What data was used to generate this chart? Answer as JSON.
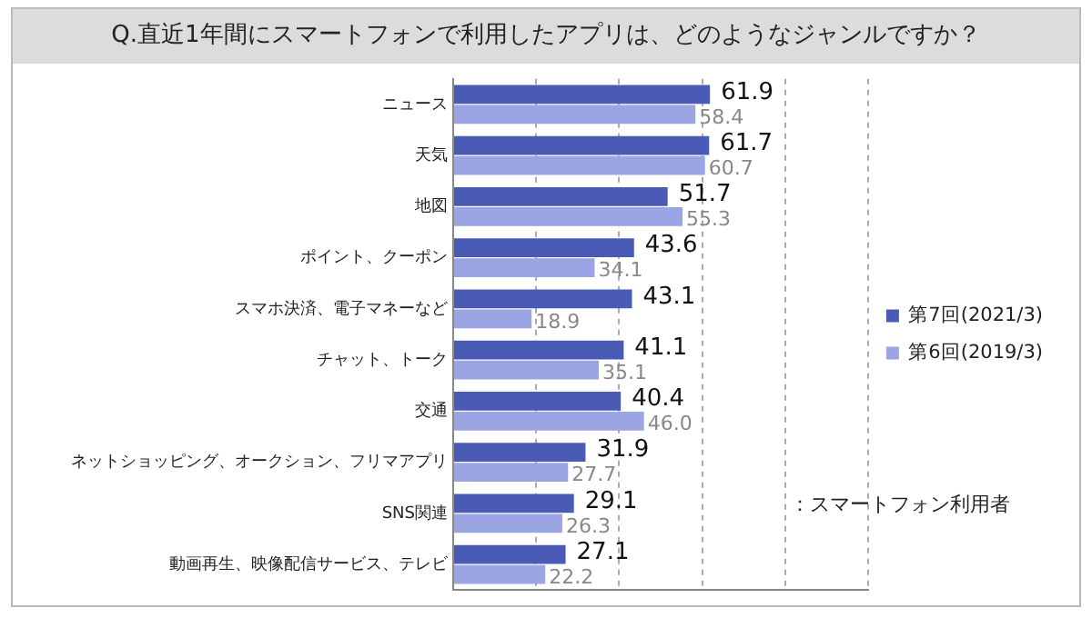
{
  "chart_data": {
    "type": "bar",
    "orientation": "horizontal",
    "title": "Q.直近1年間にスマートフォンで利用したアプリは、どのようなジャンルですか？",
    "categories": [
      "ニュース",
      "天気",
      "地図",
      "ポイント、クーポン",
      "スマホ決済、電子マネーなど",
      "チャット、トーク",
      "交通",
      "ネットショッピング、オークション、フリマアプリ",
      "SNS関連",
      "動画再生、映像配信サービス、テレビ"
    ],
    "series": [
      {
        "name": "第7回(2021/3)",
        "color": "#4a5bb5",
        "values": [
          61.9,
          61.7,
          51.7,
          43.6,
          43.1,
          41.1,
          40.4,
          31.9,
          29.1,
          27.1
        ],
        "value_labels": [
          "61.9",
          "61.7",
          "51.7",
          "43.6",
          "43.1",
          "41.1",
          "40.4",
          "31.9",
          "29.1",
          "27.1"
        ]
      },
      {
        "name": "第6回(2019/3)",
        "color": "#9ba5e3",
        "values": [
          58.4,
          60.7,
          55.3,
          34.1,
          18.9,
          35.1,
          46.0,
          27.7,
          26.3,
          22.2
        ],
        "value_labels": [
          "58.4",
          "60.7",
          "55.3",
          "34.1",
          "18.9",
          "35.1",
          "46.0",
          "27.7",
          "26.3",
          "22.2"
        ]
      }
    ],
    "xlim": [
      0,
      100
    ],
    "xticks": [
      {
        "value": 0,
        "label": null
      },
      {
        "value": 20,
        "label": null
      },
      {
        "value": 40,
        "label": null
      },
      {
        "value": 60,
        "label": null
      },
      {
        "value": 80,
        "label": null
      },
      {
        "value": 100,
        "label": null
      }
    ],
    "grid": "x",
    "legend": "right",
    "tick_labels": "y",
    "annotations": [
      "：スマートフォン利用者"
    ]
  }
}
